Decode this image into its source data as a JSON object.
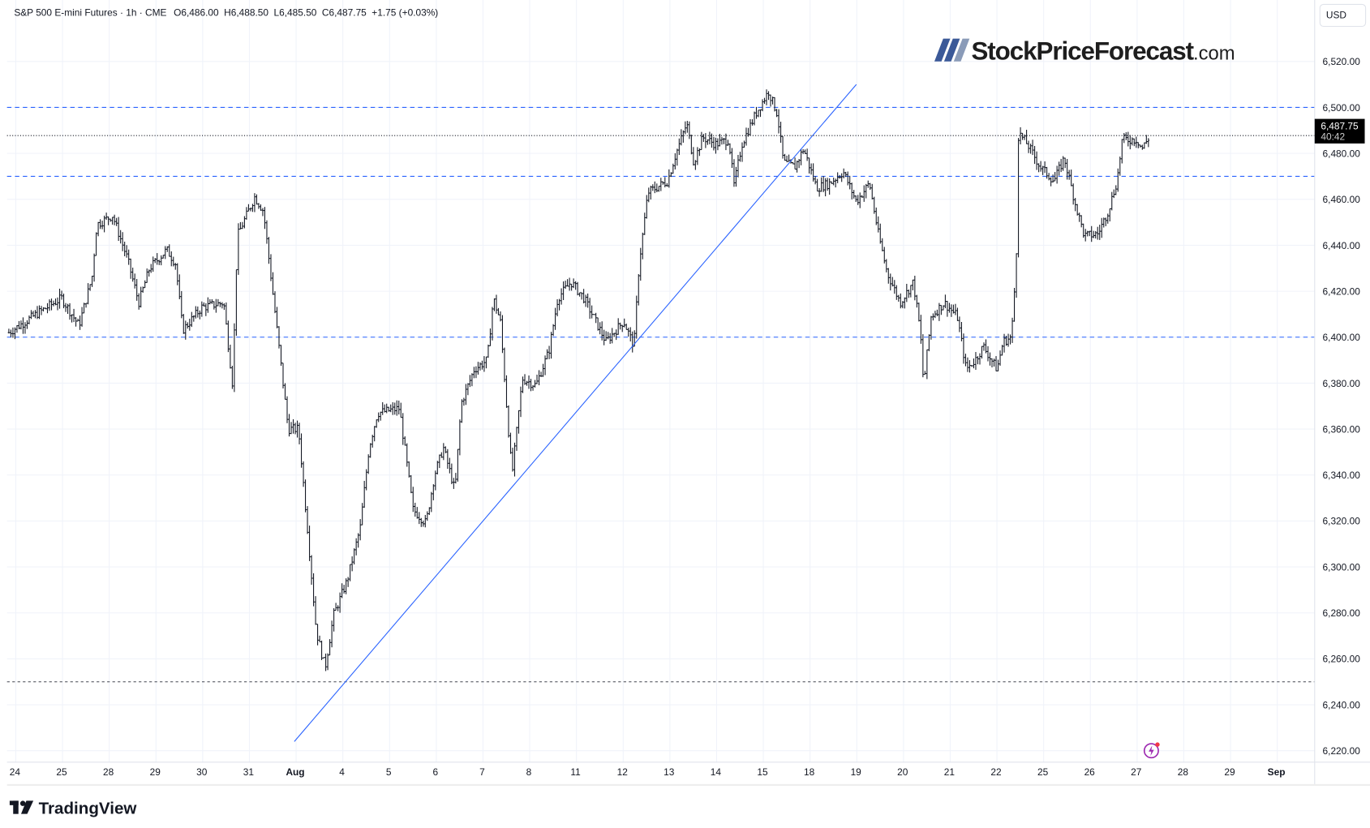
{
  "header": {
    "symbol": "S&P 500 E-mini Futures · 1h · CME",
    "open": "O6,486.00",
    "high": "H6,488.50",
    "low": "L6,485.50",
    "close": "C6,487.75",
    "change": "+1.75 (+0.03%)"
  },
  "currency_button": "USD",
  "watermark": {
    "brand": "StockPriceForecast",
    "suffix": ".com"
  },
  "footer_logo": "TradingView",
  "price_label": {
    "price": "6,487.75",
    "countdown": "40:42"
  },
  "colors": {
    "accent_line": "#2962ff",
    "bars": "#131722",
    "support": "#434651"
  },
  "chart_data": {
    "type": "ohlc",
    "title": "S&P 500 E-mini Futures · 1h · CME",
    "ylabel": "USD",
    "ylim": [
      6215,
      6535
    ],
    "y_ticks": [
      6220,
      6240,
      6260,
      6280,
      6300,
      6320,
      6340,
      6360,
      6380,
      6400,
      6420,
      6440,
      6460,
      6480,
      6500,
      6520
    ],
    "y_tick_labels": [
      "6,220.00",
      "6,240.00",
      "6,260.00",
      "6,280.00",
      "6,300.00",
      "6,320.00",
      "6,340.00",
      "6,360.00",
      "6,380.00",
      "6,400.00",
      "6,420.00",
      "6,440.00",
      "6,460.00",
      "6,480.00",
      "6,500.00",
      "6,520.00"
    ],
    "x_tick_labels": [
      "24",
      "25",
      "28",
      "29",
      "30",
      "31",
      "Aug",
      "4",
      "5",
      "6",
      "7",
      "8",
      "11",
      "12",
      "13",
      "14",
      "15",
      "18",
      "19",
      "20",
      "21",
      "22",
      "25",
      "26",
      "27",
      "28",
      "29",
      "Sep"
    ],
    "bars_per_day": 23,
    "price_path_trading_day_vs_price": [
      [
        -0.13,
        6402
      ],
      [
        0.53,
        6411
      ],
      [
        1.0,
        6417
      ],
      [
        1.37,
        6405
      ],
      [
        1.65,
        6426
      ],
      [
        1.75,
        6449
      ],
      [
        2.09,
        6453
      ],
      [
        2.41,
        6434
      ],
      [
        2.65,
        6415
      ],
      [
        2.88,
        6430
      ],
      [
        3.25,
        6438
      ],
      [
        3.44,
        6432
      ],
      [
        3.59,
        6403
      ],
      [
        4.0,
        6413
      ],
      [
        4.47,
        6415
      ],
      [
        4.66,
        6379
      ],
      [
        4.76,
        6444
      ],
      [
        5.13,
        6461
      ],
      [
        5.32,
        6455
      ],
      [
        5.6,
        6405
      ],
      [
        5.85,
        6360
      ],
      [
        6.07,
        6360
      ],
      [
        6.26,
        6317
      ],
      [
        6.45,
        6272
      ],
      [
        6.64,
        6256
      ],
      [
        6.82,
        6279
      ],
      [
        7.11,
        6294
      ],
      [
        7.39,
        6317
      ],
      [
        7.58,
        6352
      ],
      [
        7.76,
        6367
      ],
      [
        8.23,
        6369
      ],
      [
        8.52,
        6325
      ],
      [
        8.8,
        6319
      ],
      [
        8.98,
        6340
      ],
      [
        9.17,
        6352
      ],
      [
        9.42,
        6333
      ],
      [
        9.55,
        6371
      ],
      [
        9.83,
        6386
      ],
      [
        10.11,
        6390
      ],
      [
        10.24,
        6417
      ],
      [
        10.39,
        6407
      ],
      [
        10.55,
        6363
      ],
      [
        10.64,
        6340
      ],
      [
        10.86,
        6382
      ],
      [
        11.15,
        6379
      ],
      [
        11.43,
        6394
      ],
      [
        11.62,
        6417
      ],
      [
        11.9,
        6424
      ],
      [
        12.18,
        6417
      ],
      [
        12.65,
        6398
      ],
      [
        13.03,
        6407
      ],
      [
        13.25,
        6396
      ],
      [
        13.36,
        6432
      ],
      [
        13.55,
        6463
      ],
      [
        13.97,
        6468
      ],
      [
        14.15,
        6480
      ],
      [
        14.38,
        6493
      ],
      [
        14.53,
        6476
      ],
      [
        14.72,
        6487
      ],
      [
        15.0,
        6484
      ],
      [
        15.28,
        6486
      ],
      [
        15.39,
        6466
      ],
      [
        15.56,
        6484
      ],
      [
        15.85,
        6497
      ],
      [
        16.13,
        6507
      ],
      [
        16.32,
        6497
      ],
      [
        16.45,
        6476
      ],
      [
        16.69,
        6474
      ],
      [
        16.88,
        6482
      ],
      [
        17.16,
        6465
      ],
      [
        17.44,
        6467
      ],
      [
        17.73,
        6472
      ],
      [
        18.01,
        6459
      ],
      [
        18.29,
        6467
      ],
      [
        18.48,
        6445
      ],
      [
        18.67,
        6428
      ],
      [
        18.95,
        6415
      ],
      [
        19.23,
        6424
      ],
      [
        19.38,
        6402
      ],
      [
        19.45,
        6379
      ],
      [
        19.61,
        6409
      ],
      [
        19.89,
        6415
      ],
      [
        20.17,
        6409
      ],
      [
        20.36,
        6386
      ],
      [
        20.55,
        6390
      ],
      [
        20.73,
        6396
      ],
      [
        21.02,
        6386
      ],
      [
        21.15,
        6398
      ],
      [
        21.33,
        6400
      ],
      [
        21.43,
        6432
      ],
      [
        21.48,
        6489
      ],
      [
        21.67,
        6484
      ],
      [
        21.95,
        6474
      ],
      [
        22.24,
        6468
      ],
      [
        22.46,
        6478
      ],
      [
        22.71,
        6457
      ],
      [
        22.89,
        6444
      ],
      [
        23.18,
        6445
      ],
      [
        23.4,
        6455
      ],
      [
        23.59,
        6468
      ],
      [
        23.7,
        6486
      ],
      [
        24.02,
        6486
      ],
      [
        24.12,
        6482
      ],
      [
        24.3,
        6487.75
      ]
    ],
    "horizontal_levels": [
      {
        "price": 6500,
        "style": "blue-dashed"
      },
      {
        "price": 6470,
        "style": "blue-dashed"
      },
      {
        "price": 6400,
        "style": "blue-dashed"
      },
      {
        "price": 6250,
        "style": "dark-dashed"
      }
    ],
    "last_price": 6487.75,
    "trendline": {
      "from": [
        5.98,
        6224
      ],
      "to": [
        18.01,
        6510
      ]
    }
  }
}
